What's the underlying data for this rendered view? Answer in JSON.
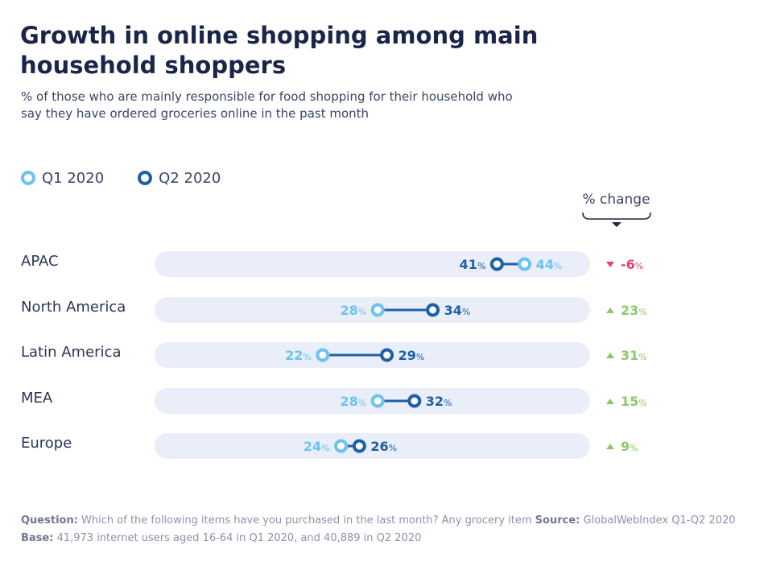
{
  "title": "Growth in online shopping among main household shoppers",
  "subtitle": "% of those who are mainly responsible for food shopping for their household who say they have ordered groceries online in the past month",
  "legend": {
    "q1": "Q1 2020",
    "q2": "Q2 2020"
  },
  "change_header": "% change",
  "pct_suffix": "%",
  "colors": {
    "q1": "#6cc3f0",
    "q2": "#1f5fa6",
    "positive": "#8dc86a",
    "negative": "#e83d7a",
    "track": "#e9eef8"
  },
  "footnote": {
    "question_label": "Question:",
    "question_text": " Which of the following items have you purchased in the last month? Any grocery item ",
    "source_label": "Source:",
    "source_text": " GlobalWebIndex Q1-Q2 2020 ",
    "base_label": "Base:",
    "base_text": " 41,973 internet users aged 16-64 in Q1 2020, and 40,889 in Q2 2020"
  },
  "chart_data": {
    "type": "dumbbell",
    "title": "Growth in online shopping among main household shoppers",
    "series": [
      {
        "name": "Q1 2020",
        "values": [
          44,
          28,
          22,
          28,
          24
        ]
      },
      {
        "name": "Q2 2020",
        "values": [
          41,
          34,
          29,
          32,
          26
        ]
      }
    ],
    "categories": [
      "APAC",
      "North America",
      "Latin America",
      "MEA",
      "Europe"
    ],
    "pct_change": [
      -6,
      23,
      31,
      15,
      9
    ],
    "pct_change_labels": [
      "-6",
      "23",
      "31",
      "15",
      "9"
    ],
    "xlim": [
      0,
      50
    ],
    "grid": false,
    "legend_position": "top-left"
  }
}
